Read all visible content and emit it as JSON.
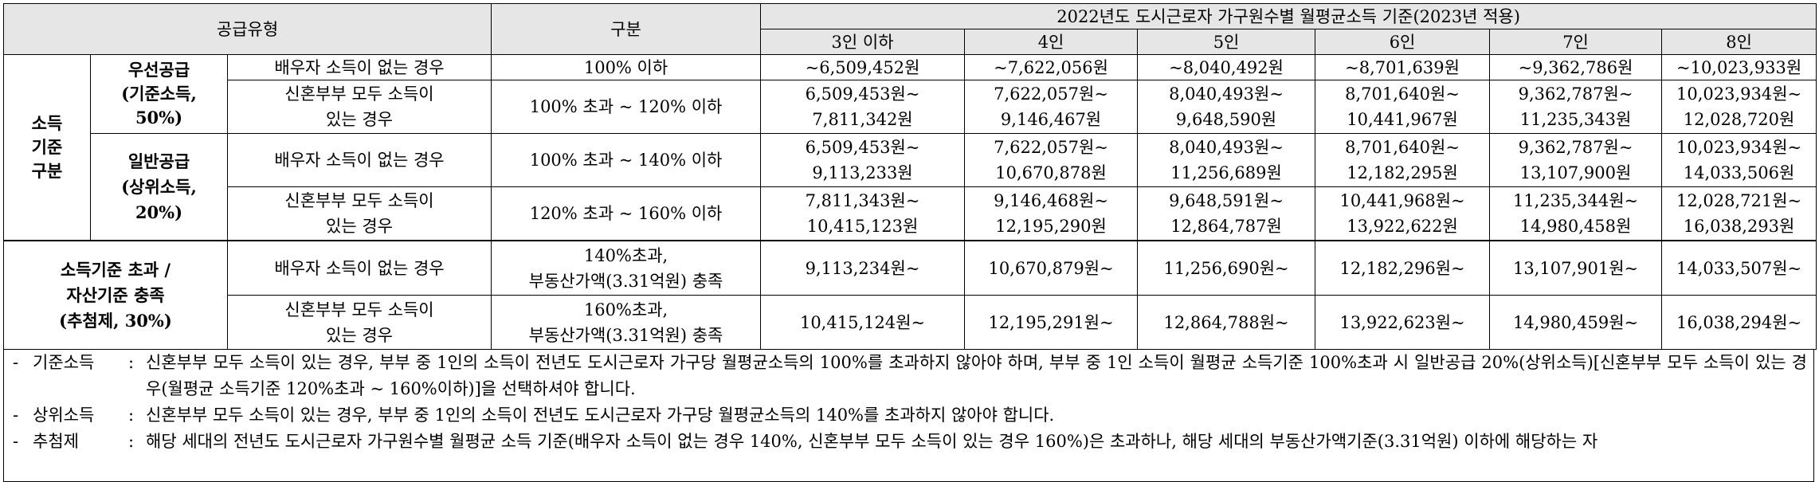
{
  "header": {
    "supply_type": "공급유형",
    "category": "구분",
    "income_title": "2022년도 도시근로자 가구원수별 월평균소득 기준(2023년 적용)",
    "household_sizes": [
      "3인 이하",
      "4인",
      "5인",
      "6인",
      "7인",
      "8인"
    ]
  },
  "groups": {
    "income_basis": [
      "소득",
      "기준",
      "구분"
    ],
    "priority": [
      "우선공급",
      "(기준소득,",
      "50%)"
    ],
    "general": [
      "일반공급",
      "(상위소득,",
      "20%)"
    ],
    "lottery": [
      "소득기준 초과 /",
      "자산기준 충족",
      "(추첨제, 30%)"
    ]
  },
  "conditions": {
    "no_spouse_income": "배우자 소득이 없는 경우",
    "both_income_l1": "신혼부부 모두 소득이",
    "both_income_l2": "있는 경우"
  },
  "rows": [
    {
      "range": [
        "100% 이하"
      ],
      "values": [
        [
          "~6,509,452원"
        ],
        [
          "~7,622,056원"
        ],
        [
          "~8,040,492원"
        ],
        [
          "~8,701,639원"
        ],
        [
          "~9,362,786원"
        ],
        [
          "~10,023,933원"
        ]
      ]
    },
    {
      "range": [
        "100% 초과 ~ 120% 이하"
      ],
      "values": [
        [
          "6,509,453원~",
          "7,811,342원"
        ],
        [
          "7,622,057원~",
          "9,146,467원"
        ],
        [
          "8,040,493원~",
          "9,648,590원"
        ],
        [
          "8,701,640원~",
          "10,441,967원"
        ],
        [
          "9,362,787원~",
          "11,235,343원"
        ],
        [
          "10,023,934원~",
          "12,028,720원"
        ]
      ]
    },
    {
      "range": [
        "100% 초과 ~ 140% 이하"
      ],
      "values": [
        [
          "6,509,453원~",
          "9,113,233원"
        ],
        [
          "7,622,057원~",
          "10,670,878원"
        ],
        [
          "8,040,493원~",
          "11,256,689원"
        ],
        [
          "8,701,640원~",
          "12,182,295원"
        ],
        [
          "9,362,787원~",
          "13,107,900원"
        ],
        [
          "10,023,934원~",
          "14,033,506원"
        ]
      ]
    },
    {
      "range": [
        "120% 초과 ~ 160% 이하"
      ],
      "values": [
        [
          "7,811,343원~",
          "10,415,123원"
        ],
        [
          "9,146,468원~",
          "12,195,290원"
        ],
        [
          "9,648,591원~",
          "12,864,787원"
        ],
        [
          "10,441,968원~",
          "13,922,622원"
        ],
        [
          "11,235,344원~",
          "14,980,458원"
        ],
        [
          "12,028,721원~",
          "16,038,293원"
        ]
      ]
    },
    {
      "range": [
        "140%초과,",
        "부동산가액(3.31억원) 충족"
      ],
      "values": [
        [
          "9,113,234원~"
        ],
        [
          "10,670,879원~"
        ],
        [
          "11,256,690원~"
        ],
        [
          "12,182,296원~"
        ],
        [
          "13,107,901원~"
        ],
        [
          "14,033,507원~"
        ]
      ]
    },
    {
      "range": [
        "160%초과,",
        "부동산가액(3.31억원) 충족"
      ],
      "values": [
        [
          "10,415,124원~"
        ],
        [
          "12,195,291원~"
        ],
        [
          "12,864,788원~"
        ],
        [
          "13,922,623원~"
        ],
        [
          "14,980,459원~"
        ],
        [
          "16,038,294원~"
        ]
      ]
    }
  ],
  "notes": [
    {
      "dash": "-",
      "key": "기준소득",
      "colon": ":",
      "text": "신혼부부 모두 소득이 있는 경우, 부부 중 1인의 소득이 전년도 도시근로자 가구당 월평균소득의 100%를 초과하지 않아야 하며, 부부 중 1인 소득이 월평균 소득기준 100%초과 시 일반공급 20%(상위소득)[신혼부부 모두 소득이 있는 경우(월평균 소득기준 120%초과 ~ 160%이하)]을 선택하셔야 합니다."
    },
    {
      "dash": "-",
      "key": "상위소득",
      "colon": ":",
      "text": "신혼부부 모두 소득이 있는 경우, 부부 중 1인의 소득이 전년도 도시근로자 가구당 월평균소득의 140%를 초과하지 않아야 합니다."
    },
    {
      "dash": "-",
      "key": "추첨제",
      "colon": ":",
      "text": "해당 세대의 전년도 도시근로자 가구원수별 월평균 소득 기준(배우자 소득이 없는 경우 140%, 신혼부부 모두 소득이 있는 경우 160%)은 초과하나, 해당 세대의 부동산가액기준(3.31억원) 이하에 해당하는 자"
    }
  ]
}
